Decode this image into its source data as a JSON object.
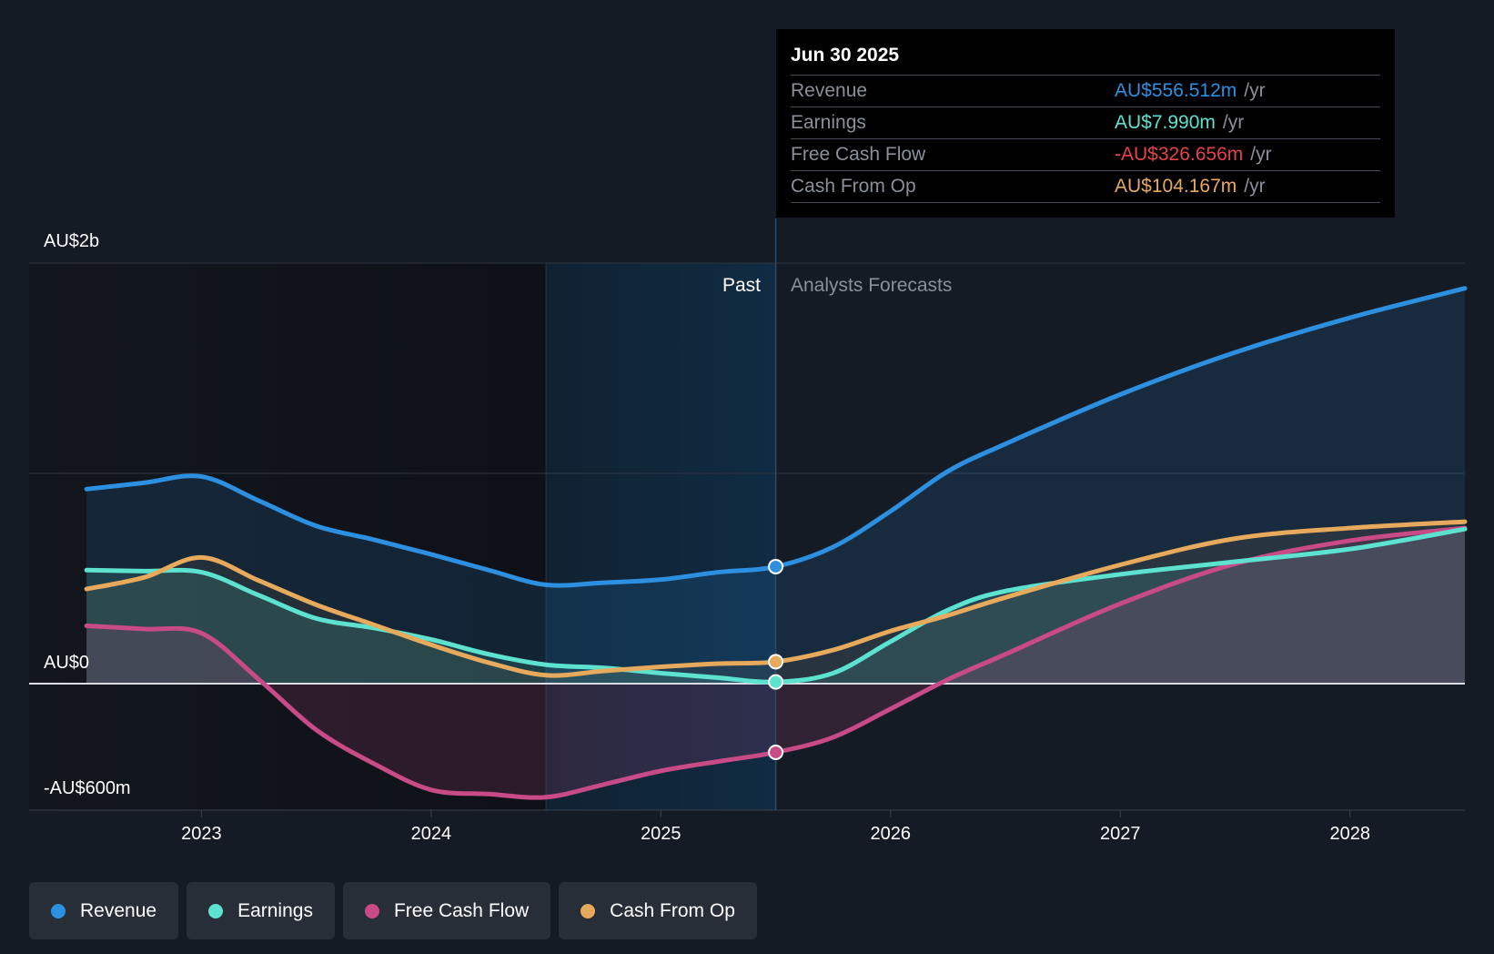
{
  "chart_data": {
    "type": "area",
    "ylabels": {
      "top": "AU$2b",
      "zero": "AU$0",
      "bottom": "-AU$600m"
    },
    "ylim": [
      -600,
      2000
    ],
    "x_ticks": [
      "2023",
      "2024",
      "2025",
      "2026",
      "2027",
      "2028"
    ],
    "x_tick_values": [
      2023.0,
      2024.0,
      2025.0,
      2026.0,
      2027.0,
      2028.0
    ],
    "xlim": [
      2022.25,
      2028.5
    ],
    "past_label": "Past",
    "forecast_label": "Analysts Forecasts",
    "past_end": 2025.5,
    "highlight_start": 2024.5,
    "series": [
      {
        "name": "Revenue",
        "color": "#2d8fe0",
        "points": [
          [
            2022.5,
            925
          ],
          [
            2022.75,
            955
          ],
          [
            2023.0,
            985
          ],
          [
            2023.25,
            870
          ],
          [
            2023.5,
            750
          ],
          [
            2023.75,
            685
          ],
          [
            2024.0,
            615
          ],
          [
            2024.25,
            540
          ],
          [
            2024.5,
            470
          ],
          [
            2024.75,
            480
          ],
          [
            2025.0,
            495
          ],
          [
            2025.25,
            530
          ],
          [
            2025.5,
            556.512
          ],
          [
            2025.75,
            650
          ],
          [
            2026.0,
            820
          ],
          [
            2026.25,
            1010
          ],
          [
            2026.5,
            1140
          ],
          [
            2027.0,
            1375
          ],
          [
            2027.5,
            1575
          ],
          [
            2028.0,
            1740
          ],
          [
            2028.5,
            1880
          ]
        ]
      },
      {
        "name": "Earnings",
        "color": "#5ee2d0",
        "points": [
          [
            2022.5,
            540
          ],
          [
            2022.75,
            535
          ],
          [
            2023.0,
            530
          ],
          [
            2023.25,
            420
          ],
          [
            2023.5,
            310
          ],
          [
            2023.75,
            265
          ],
          [
            2024.0,
            210
          ],
          [
            2024.25,
            140
          ],
          [
            2024.5,
            90
          ],
          [
            2024.75,
            75
          ],
          [
            2025.0,
            50
          ],
          [
            2025.25,
            28
          ],
          [
            2025.5,
            7.99
          ],
          [
            2025.75,
            50
          ],
          [
            2026.0,
            200
          ],
          [
            2026.25,
            350
          ],
          [
            2026.5,
            440
          ],
          [
            2027.0,
            520
          ],
          [
            2027.5,
            580
          ],
          [
            2028.0,
            640
          ],
          [
            2028.5,
            735
          ]
        ]
      },
      {
        "name": "Free Cash Flow",
        "color": "#c84a86",
        "points": [
          [
            2022.5,
            275
          ],
          [
            2022.75,
            260
          ],
          [
            2023.0,
            240
          ],
          [
            2023.25,
            20
          ],
          [
            2023.5,
            -220
          ],
          [
            2023.75,
            -380
          ],
          [
            2024.0,
            -505
          ],
          [
            2024.25,
            -525
          ],
          [
            2024.5,
            -540
          ],
          [
            2024.75,
            -480
          ],
          [
            2025.0,
            -415
          ],
          [
            2025.25,
            -370
          ],
          [
            2025.5,
            -326.656
          ],
          [
            2025.75,
            -255
          ],
          [
            2026.0,
            -120
          ],
          [
            2026.25,
            20
          ],
          [
            2026.5,
            140
          ],
          [
            2027.0,
            380
          ],
          [
            2027.5,
            570
          ],
          [
            2028.0,
            680
          ],
          [
            2028.5,
            740
          ]
        ]
      },
      {
        "name": "Cash From Op",
        "color": "#e7aa5c",
        "points": [
          [
            2022.5,
            450
          ],
          [
            2022.75,
            505
          ],
          [
            2023.0,
            600
          ],
          [
            2023.25,
            490
          ],
          [
            2023.5,
            375
          ],
          [
            2023.75,
            280
          ],
          [
            2024.0,
            185
          ],
          [
            2024.25,
            100
          ],
          [
            2024.5,
            40
          ],
          [
            2024.75,
            60
          ],
          [
            2025.0,
            80
          ],
          [
            2025.25,
            95
          ],
          [
            2025.5,
            104.167
          ],
          [
            2025.75,
            160
          ],
          [
            2026.0,
            250
          ],
          [
            2026.25,
            325
          ],
          [
            2026.5,
            410
          ],
          [
            2027.0,
            565
          ],
          [
            2027.5,
            690
          ],
          [
            2028.0,
            740
          ],
          [
            2028.5,
            770
          ]
        ]
      }
    ]
  },
  "tooltip": {
    "date": "Jun 30 2025",
    "rows": [
      {
        "name": "Revenue",
        "value": "AU$556.512m",
        "unit": "/yr",
        "color": "#2d8fe0"
      },
      {
        "name": "Earnings",
        "value": "AU$7.990m",
        "unit": "/yr",
        "color": "#5ee2d0"
      },
      {
        "name": "Free Cash Flow",
        "value": "-AU$326.656m",
        "unit": "/yr",
        "color": "#e5434a"
      },
      {
        "name": "Cash From Op",
        "value": "AU$104.167m",
        "unit": "/yr",
        "color": "#e7aa5c"
      }
    ]
  },
  "legend": [
    {
      "label": "Revenue",
      "color": "#2d8fe0"
    },
    {
      "label": "Earnings",
      "color": "#5ee2d0"
    },
    {
      "label": "Free Cash Flow",
      "color": "#c84a86"
    },
    {
      "label": "Cash From Op",
      "color": "#e7aa5c"
    }
  ]
}
